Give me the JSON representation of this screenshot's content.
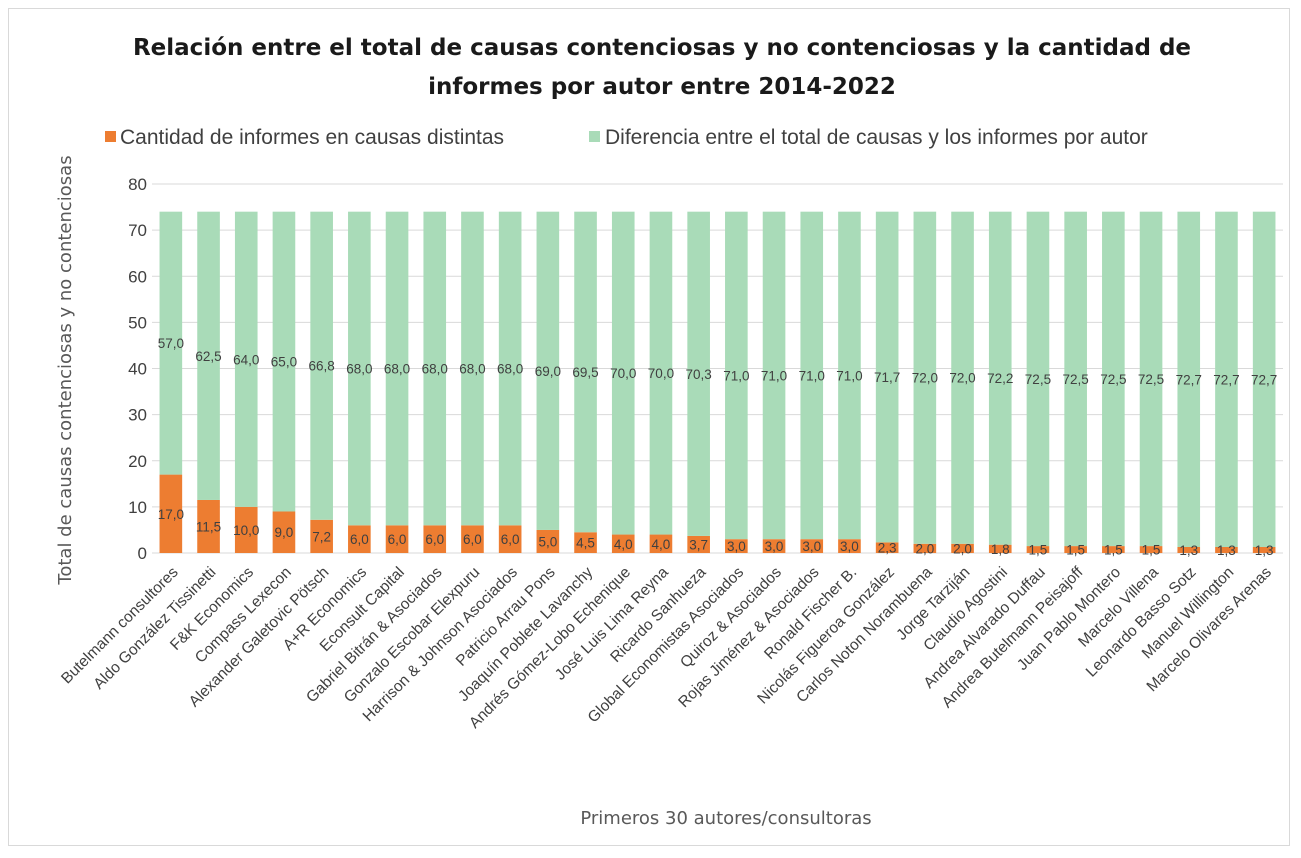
{
  "chart_data": {
    "type": "bar",
    "stacked": true,
    "title_line1": "Relación entre el total de causas contenciosas y no contenciosas y la cantidad de",
    "title_line2": "informes por autor entre 2014-2022",
    "xlabel": "Primeros 30 autores/consultoras",
    "ylabel": "Total de causas contenciosas y no contenciosas",
    "ylim": [
      0,
      80
    ],
    "yticks": [
      "0",
      "10",
      "20",
      "30",
      "40",
      "50",
      "60",
      "70",
      "80"
    ],
    "grid": true,
    "legend_position": "top",
    "categories": [
      "Butelmann consultores",
      "Aldo González Tissinetti",
      "F&K Economics",
      "Compass Lexecon",
      "Alexander Galetovic Pötsch",
      "A+R Economics",
      "Econsult Capital",
      "Gabriel Bitrán & Asociados",
      "Gonzalo Escobar Elexpuru",
      "Harrison & Johnson Asociados",
      "Patricio Arrau Pons",
      "Joaquín Poblete Lavanchy",
      "Andrés Gómez-Lobo Echenique",
      "José Luis Lima Reyna",
      "Ricardo Sanhueza",
      "Global Economistas Asociados",
      "Quiroz & Asociados",
      "Rojas Jiménez & Asociados",
      "Ronald Fischer B.",
      "Nicolás Figueroa González",
      "Carlos Noton Norambuena",
      "Jorge Tarziján",
      "Claudio Agostini",
      "Andrea Alvarado Duffau",
      "Andrea Butelmann Peisajoff",
      "Juan Pablo Montero",
      "Marcelo Villena",
      "Leonardo Basso Sotz",
      "Manuel Willington",
      "Marcelo Olivares Arenas"
    ],
    "series": [
      {
        "name": "Cantidad de informes en causas distintas",
        "color": "#ed7d31",
        "values": [
          17.0,
          11.5,
          10.0,
          9.0,
          7.2,
          6.0,
          6.0,
          6.0,
          6.0,
          6.0,
          5.0,
          4.5,
          4.0,
          4.0,
          3.7,
          3.0,
          3.0,
          3.0,
          3.0,
          2.3,
          2.0,
          2.0,
          1.8,
          1.5,
          1.5,
          1.5,
          1.5,
          1.3,
          1.3,
          1.3
        ],
        "labels": [
          "17,0",
          "11,5",
          "10,0",
          "9,0",
          "7,2",
          "6,0",
          "6,0",
          "6,0",
          "6,0",
          "6,0",
          "5,0",
          "4,5",
          "4,0",
          "4,0",
          "3,7",
          "3,0",
          "3,0",
          "3,0",
          "3,0",
          "2,3",
          "2,0",
          "2,0",
          "1,8",
          "1,5",
          "1,5",
          "1,5",
          "1,5",
          "1,3",
          "1,3",
          "1,3"
        ]
      },
      {
        "name": "Diferencia entre el total de causas y los informes por autor",
        "color": "#a9dbb8",
        "values": [
          57.0,
          62.5,
          64.0,
          65.0,
          66.8,
          68.0,
          68.0,
          68.0,
          68.0,
          68.0,
          69.0,
          69.5,
          70.0,
          70.0,
          70.3,
          71.0,
          71.0,
          71.0,
          71.0,
          71.7,
          72.0,
          72.0,
          72.2,
          72.5,
          72.5,
          72.5,
          72.5,
          72.7,
          72.7,
          72.7
        ],
        "labels": [
          "57,0",
          "62,5",
          "64,0",
          "65,0",
          "66,8",
          "68,0",
          "68,0",
          "68,0",
          "68,0",
          "68,0",
          "69,0",
          "69,5",
          "70,0",
          "70,0",
          "70,3",
          "71,0",
          "71,0",
          "71,0",
          "71,0",
          "71,7",
          "72,0",
          "72,0",
          "72,2",
          "72,5",
          "72,5",
          "72,5",
          "72,5",
          "72,7",
          "72,7",
          "72,7"
        ]
      }
    ]
  }
}
